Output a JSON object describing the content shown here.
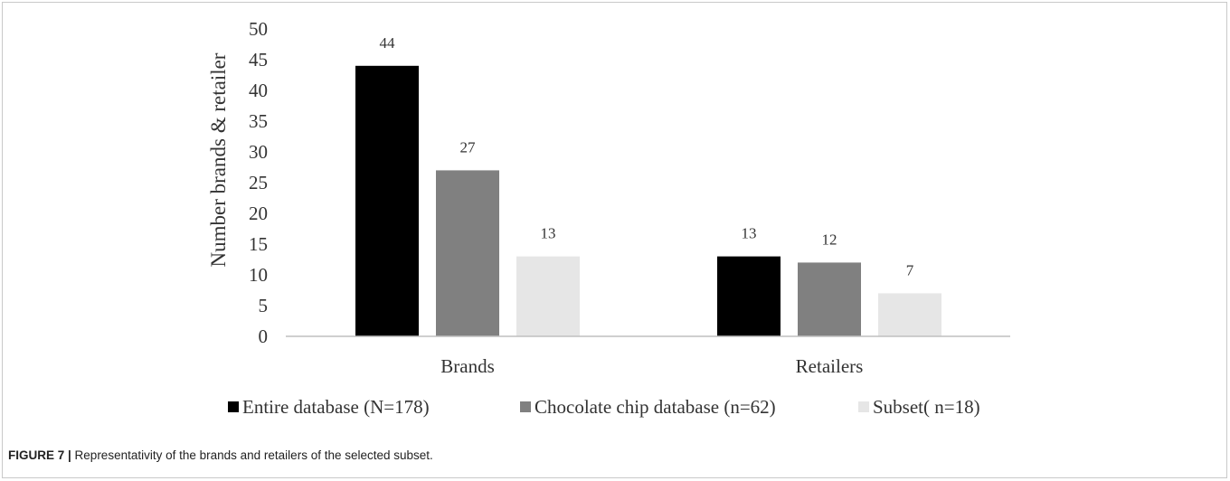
{
  "chart_data": {
    "type": "bar",
    "categories": [
      "Brands",
      "Retailers"
    ],
    "series": [
      {
        "name": "Entire database (N=178)",
        "values": [
          44,
          13
        ],
        "color": "#000000"
      },
      {
        "name": "Chocolate chip database (n=62)",
        "values": [
          27,
          12
        ],
        "color": "#808080"
      },
      {
        "name": "Subset( n=18)",
        "values": [
          13,
          7
        ],
        "color": "#e6e6e6"
      }
    ],
    "ylabel": "Number brands & retailer",
    "xlabel": "",
    "ylim": [
      0,
      50
    ],
    "yticks": [
      "0",
      "5",
      "10",
      "15",
      "20",
      "25",
      "30",
      "35",
      "40",
      "45",
      "50"
    ],
    "grid": false,
    "legend_position": "bottom"
  },
  "caption": {
    "label": "FIGURE 7 |",
    "text": " Representativity of the brands and retailers of the selected subset."
  }
}
